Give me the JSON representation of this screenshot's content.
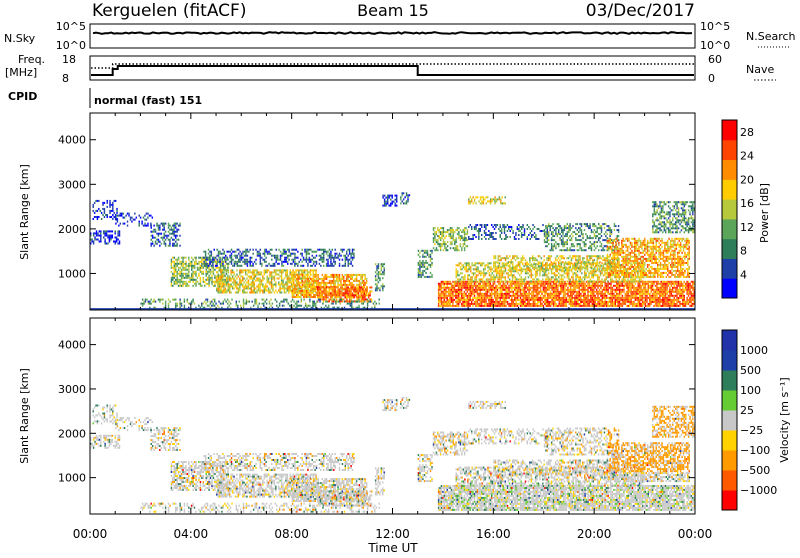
{
  "header": {
    "station": "Kerguelen (fitACF)",
    "beam": "Beam 15",
    "date": "03/Dec/2017"
  },
  "noise_panel": {
    "left_label": "N.Sky",
    "right_label": "N.Search",
    "left_ticks": [
      "10^5",
      "10^0"
    ],
    "right_ticks": [
      "10^5",
      "10^0"
    ]
  },
  "freq_panel": {
    "left_label_1": "Freq.",
    "left_label_2": "[MHz]",
    "right_label": "Nave",
    "left_ticks": [
      "18",
      "8"
    ],
    "right_ticks": [
      "60",
      "0"
    ],
    "cpid_label": "CPID",
    "cpid_text": "normal (fast) 151"
  },
  "time_axis": {
    "label": "Time UT",
    "ticks": [
      "00:00",
      "04:00",
      "08:00",
      "12:00",
      "16:00",
      "20:00",
      "00:00"
    ]
  },
  "colors": {
    "power": [
      "#0000ff",
      "#1f3fa8",
      "#2e7d5b",
      "#5aa55a",
      "#b6c83c",
      "#ffcc00",
      "#ff8c00",
      "#ff4500",
      "#ff0000"
    ],
    "velocity": [
      "#ff0000",
      "#ff5a00",
      "#ff9a00",
      "#ffd200",
      "#c8c8c8",
      "#66cc33",
      "#2e7d5b",
      "#1f3fa8",
      "#2233aa"
    ]
  },
  "chart_data": [
    {
      "type": "heatmap",
      "title": "",
      "xlabel": "Time UT",
      "ylabel": "Slant Range [km]",
      "xlim_hours": [
        0,
        24
      ],
      "ylim": [
        180,
        4600
      ],
      "y_ticks": [
        1000,
        2000,
        3000,
        4000
      ],
      "colorbar_label": "Power [dB]",
      "colorbar_ticks": [
        4,
        8,
        12,
        16,
        20,
        24,
        28
      ],
      "colorbar_range": [
        0,
        30
      ]
    },
    {
      "type": "heatmap",
      "title": "",
      "xlabel": "Time UT",
      "ylabel": "Slant Range [km]",
      "xlim_hours": [
        0,
        24
      ],
      "ylim": [
        180,
        4600
      ],
      "y_ticks": [
        1000,
        2000,
        3000,
        4000
      ],
      "colorbar_label": "Velocity [m s⁻¹]",
      "colorbar_ticks": [
        "1000",
        "500",
        "100",
        "25",
        "−25",
        "−100",
        "−500",
        "−1000"
      ]
    }
  ]
}
